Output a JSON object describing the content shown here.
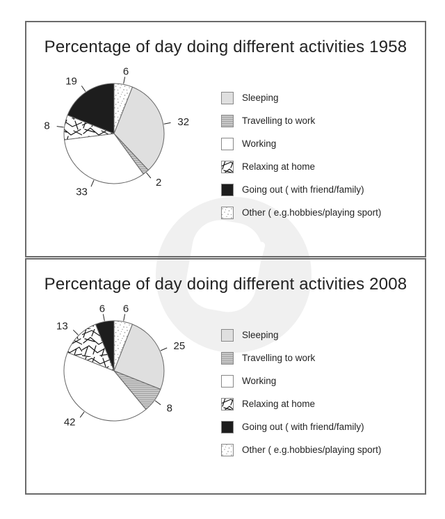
{
  "colors": {
    "text": "#232323",
    "panel_border": "#6a6a6a",
    "slice_outline": "#666666",
    "light_gray_fill": "#dfdfdf",
    "stripe_base": "#cccccc",
    "stripe_line": "#999999",
    "black_fill": "#1d1d1d",
    "dot_color": "#a3a3a3",
    "scribble_color": "#161616",
    "swatch_border": "#888888",
    "watermark_gray": "#f0f0f0",
    "watermark_white": "#ffffff"
  },
  "legend": {
    "items": [
      {
        "label": "Sleeping",
        "style": "lightgray"
      },
      {
        "label": "Travelling to work",
        "style": "stripes"
      },
      {
        "label": "Working",
        "style": "white"
      },
      {
        "label": "Relaxing at home",
        "style": "scribble"
      },
      {
        "label": "Going out ( with friend/family)",
        "style": "black"
      },
      {
        "label": "Other ( e.g.hobbies/playing sport)",
        "style": "dots"
      }
    ]
  },
  "chart_data": [
    {
      "type": "pie",
      "title": "Percentage of day doing different activities 1958",
      "units": "percent",
      "start_angle_deg": 0,
      "direction": "clockwise",
      "legend_position": "right",
      "slices": [
        {
          "label": "Other ( e.g.hobbies/playing sport)",
          "value": 6,
          "style": "dots"
        },
        {
          "label": "Sleeping",
          "value": 32,
          "style": "lightgray"
        },
        {
          "label": "Travelling to work",
          "value": 2,
          "style": "stripes"
        },
        {
          "label": "Working",
          "value": 33,
          "style": "white"
        },
        {
          "label": "Relaxing at home",
          "value": 8,
          "style": "scribble"
        },
        {
          "label": "Going out ( with friend/family)",
          "value": 19,
          "style": "black"
        }
      ]
    },
    {
      "type": "pie",
      "title": "Percentage of day doing different activities 2008",
      "units": "percent",
      "start_angle_deg": 0,
      "direction": "clockwise",
      "legend_position": "right",
      "slices": [
        {
          "label": "Other ( e.g.hobbies/playing sport)",
          "value": 6,
          "style": "dots"
        },
        {
          "label": "Sleeping",
          "value": 25,
          "style": "lightgray"
        },
        {
          "label": "Travelling to work",
          "value": 8,
          "style": "stripes"
        },
        {
          "label": "Working",
          "value": 42,
          "style": "white"
        },
        {
          "label": "Relaxing at home",
          "value": 13,
          "style": "scribble"
        },
        {
          "label": "Going out ( with friend/family)",
          "value": 6,
          "style": "black"
        }
      ]
    }
  ]
}
